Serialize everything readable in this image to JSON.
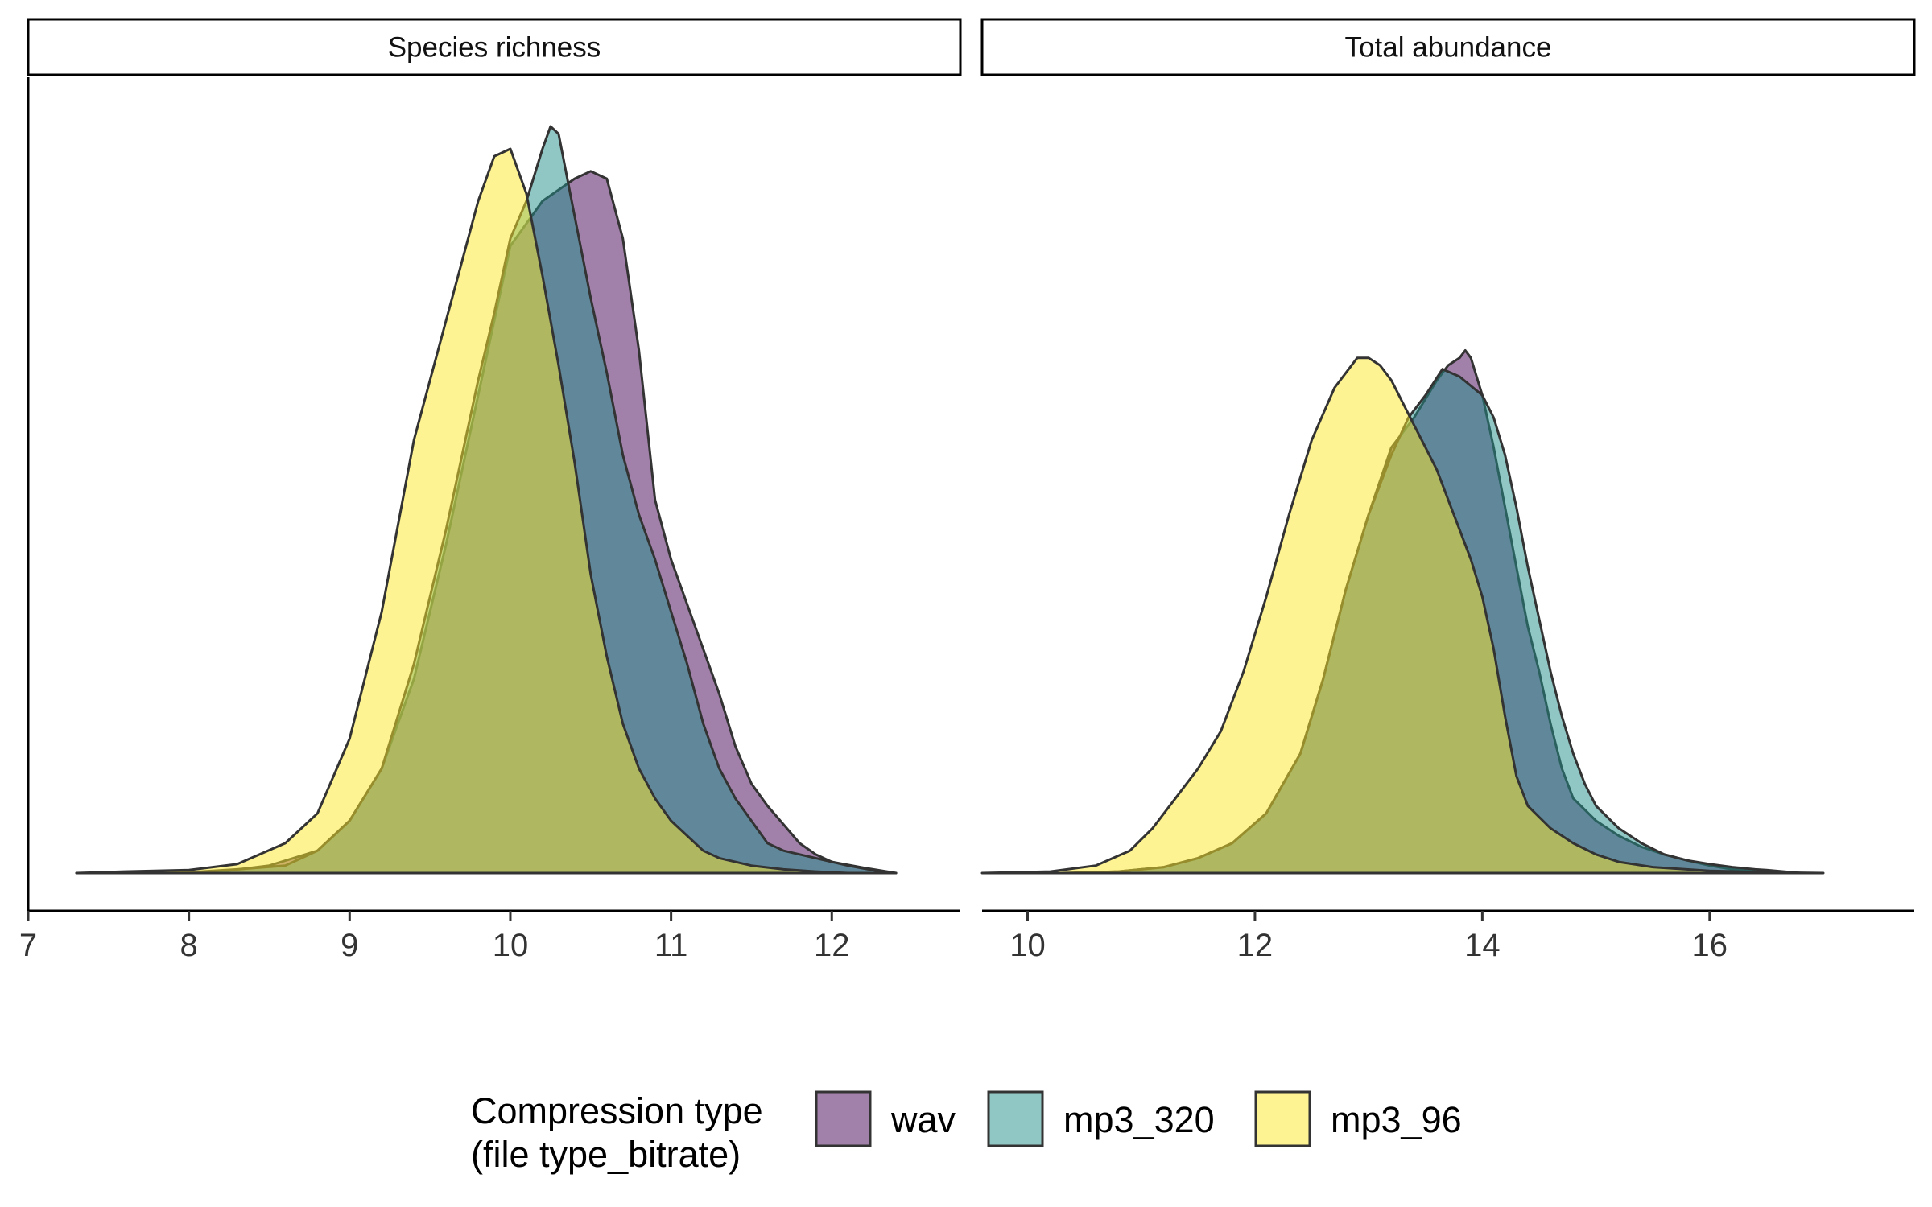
{
  "chart_data": {
    "type": "area",
    "chart_kind": "faceted density plot",
    "y_axis_visible": false,
    "grid": false,
    "legend": {
      "placement": "bottom",
      "title_lines": [
        "Compression type",
        "(file type_bitrate)"
      ],
      "entries": [
        {
          "key": "wav",
          "label": "wav",
          "color": "#440154"
        },
        {
          "key": "mp3_320",
          "label": "mp3_320",
          "color": "#21908C"
        },
        {
          "key": "mp3_96",
          "label": "mp3_96",
          "color": "#FDE725"
        }
      ]
    },
    "style": {
      "fill_alpha": 0.5,
      "outline_color": "#333333"
    },
    "panels": [
      {
        "title": "Species richness",
        "xlim": [
          7.0,
          12.8
        ],
        "ylim": [
          0,
          1.04
        ],
        "x_ticks": [
          7,
          8,
          9,
          10,
          11,
          12
        ],
        "x_tick_labels": [
          "7",
          "8",
          "9",
          "10",
          "11",
          "12"
        ],
        "series": [
          {
            "name": "wav",
            "color": "#440154",
            "points": [
              [
                7.9,
                0.0
              ],
              [
                8.2,
                0.002
              ],
              [
                8.5,
                0.01
              ],
              [
                8.8,
                0.03
              ],
              [
                9.0,
                0.07
              ],
              [
                9.2,
                0.14
              ],
              [
                9.4,
                0.26
              ],
              [
                9.6,
                0.44
              ],
              [
                9.8,
                0.64
              ],
              [
                10.0,
                0.84
              ],
              [
                10.2,
                0.9
              ],
              [
                10.4,
                0.93
              ],
              [
                10.5,
                0.94
              ],
              [
                10.6,
                0.93
              ],
              [
                10.7,
                0.85
              ],
              [
                10.8,
                0.7
              ],
              [
                10.9,
                0.5
              ],
              [
                11.0,
                0.42
              ],
              [
                11.1,
                0.36
              ],
              [
                11.2,
                0.3
              ],
              [
                11.3,
                0.24
              ],
              [
                11.4,
                0.17
              ],
              [
                11.5,
                0.12
              ],
              [
                11.6,
                0.09
              ],
              [
                11.7,
                0.065
              ],
              [
                11.8,
                0.04
              ],
              [
                11.9,
                0.025
              ],
              [
                12.0,
                0.015
              ],
              [
                12.2,
                0.007
              ],
              [
                12.4,
                0.0
              ]
            ]
          },
          {
            "name": "mp3_320",
            "color": "#21908C",
            "points": [
              [
                7.8,
                0.0
              ],
              [
                8.0,
                0.001
              ],
              [
                8.3,
                0.005
              ],
              [
                8.6,
                0.01
              ],
              [
                8.8,
                0.03
              ],
              [
                9.0,
                0.07
              ],
              [
                9.2,
                0.14
              ],
              [
                9.4,
                0.28
              ],
              [
                9.6,
                0.46
              ],
              [
                9.8,
                0.66
              ],
              [
                9.9,
                0.75
              ],
              [
                10.0,
                0.85
              ],
              [
                10.1,
                0.9
              ],
              [
                10.2,
                0.97
              ],
              [
                10.25,
                1.0
              ],
              [
                10.3,
                0.99
              ],
              [
                10.4,
                0.88
              ],
              [
                10.5,
                0.77
              ],
              [
                10.6,
                0.67
              ],
              [
                10.7,
                0.56
              ],
              [
                10.8,
                0.48
              ],
              [
                10.9,
                0.42
              ],
              [
                11.0,
                0.35
              ],
              [
                11.1,
                0.28
              ],
              [
                11.2,
                0.2
              ],
              [
                11.3,
                0.14
              ],
              [
                11.4,
                0.1
              ],
              [
                11.5,
                0.07
              ],
              [
                11.6,
                0.04
              ],
              [
                11.7,
                0.03
              ],
              [
                11.8,
                0.025
              ],
              [
                11.9,
                0.02
              ],
              [
                12.0,
                0.015
              ],
              [
                12.1,
                0.01
              ],
              [
                12.3,
                0.002
              ],
              [
                12.4,
                0.0
              ]
            ]
          },
          {
            "name": "mp3_96",
            "color": "#FDE725",
            "points": [
              [
                7.3,
                0.0
              ],
              [
                7.6,
                0.002
              ],
              [
                8.0,
                0.004
              ],
              [
                8.3,
                0.012
              ],
              [
                8.6,
                0.04
              ],
              [
                8.8,
                0.08
              ],
              [
                9.0,
                0.18
              ],
              [
                9.2,
                0.35
              ],
              [
                9.4,
                0.58
              ],
              [
                9.6,
                0.74
              ],
              [
                9.7,
                0.82
              ],
              [
                9.8,
                0.9
              ],
              [
                9.9,
                0.96
              ],
              [
                10.0,
                0.97
              ],
              [
                10.1,
                0.91
              ],
              [
                10.2,
                0.8
              ],
              [
                10.3,
                0.68
              ],
              [
                10.4,
                0.55
              ],
              [
                10.5,
                0.4
              ],
              [
                10.6,
                0.29
              ],
              [
                10.7,
                0.2
              ],
              [
                10.8,
                0.14
              ],
              [
                10.9,
                0.1
              ],
              [
                11.0,
                0.07
              ],
              [
                11.1,
                0.05
              ],
              [
                11.2,
                0.03
              ],
              [
                11.3,
                0.02
              ],
              [
                11.4,
                0.015
              ],
              [
                11.5,
                0.01
              ],
              [
                11.7,
                0.005
              ],
              [
                11.9,
                0.002
              ],
              [
                12.1,
                0.0
              ]
            ]
          }
        ]
      },
      {
        "title": "Total abundance",
        "xlim": [
          9.6,
          17.8
        ],
        "ylim": [
          0,
          1.04
        ],
        "x_ticks": [
          10,
          12,
          14,
          16
        ],
        "x_tick_labels": [
          "10",
          "12",
          "14",
          "16"
        ],
        "series": [
          {
            "name": "wav",
            "color": "#440154",
            "points": [
              [
                10.3,
                0.0
              ],
              [
                10.8,
                0.002
              ],
              [
                11.2,
                0.008
              ],
              [
                11.5,
                0.02
              ],
              [
                11.8,
                0.04
              ],
              [
                12.1,
                0.08
              ],
              [
                12.4,
                0.16
              ],
              [
                12.6,
                0.26
              ],
              [
                12.8,
                0.38
              ],
              [
                13.0,
                0.48
              ],
              [
                13.2,
                0.57
              ],
              [
                13.4,
                0.61
              ],
              [
                13.6,
                0.66
              ],
              [
                13.7,
                0.68
              ],
              [
                13.8,
                0.69
              ],
              [
                13.85,
                0.7
              ],
              [
                13.9,
                0.69
              ],
              [
                14.0,
                0.64
              ],
              [
                14.1,
                0.57
              ],
              [
                14.2,
                0.49
              ],
              [
                14.3,
                0.41
              ],
              [
                14.4,
                0.33
              ],
              [
                14.5,
                0.27
              ],
              [
                14.6,
                0.2
              ],
              [
                14.7,
                0.14
              ],
              [
                14.8,
                0.1
              ],
              [
                15.0,
                0.07
              ],
              [
                15.2,
                0.05
              ],
              [
                15.4,
                0.035
              ],
              [
                15.6,
                0.025
              ],
              [
                15.8,
                0.017
              ],
              [
                16.0,
                0.01
              ],
              [
                16.2,
                0.005
              ],
              [
                16.4,
                0.002
              ],
              [
                16.6,
                0.0
              ]
            ]
          },
          {
            "name": "mp3_320",
            "color": "#21908C",
            "points": [
              [
                10.4,
                0.0
              ],
              [
                10.8,
                0.002
              ],
              [
                11.2,
                0.008
              ],
              [
                11.5,
                0.02
              ],
              [
                11.8,
                0.04
              ],
              [
                12.1,
                0.08
              ],
              [
                12.4,
                0.16
              ],
              [
                12.6,
                0.26
              ],
              [
                12.8,
                0.38
              ],
              [
                13.0,
                0.48
              ],
              [
                13.2,
                0.56
              ],
              [
                13.35,
                0.61
              ],
              [
                13.5,
                0.64
              ],
              [
                13.65,
                0.675
              ],
              [
                13.8,
                0.665
              ],
              [
                14.0,
                0.64
              ],
              [
                14.1,
                0.61
              ],
              [
                14.2,
                0.56
              ],
              [
                14.3,
                0.49
              ],
              [
                14.4,
                0.41
              ],
              [
                14.5,
                0.34
              ],
              [
                14.6,
                0.27
              ],
              [
                14.7,
                0.21
              ],
              [
                14.8,
                0.16
              ],
              [
                14.9,
                0.12
              ],
              [
                15.0,
                0.09
              ],
              [
                15.2,
                0.06
              ],
              [
                15.4,
                0.04
              ],
              [
                15.6,
                0.025
              ],
              [
                15.8,
                0.017
              ],
              [
                16.0,
                0.012
              ],
              [
                16.2,
                0.008
              ],
              [
                16.4,
                0.005
              ],
              [
                16.5,
                0.004
              ],
              [
                16.8,
                0.0
              ]
            ]
          },
          {
            "name": "mp3_96",
            "color": "#FDE725",
            "points": [
              [
                9.6,
                0.0
              ],
              [
                10.2,
                0.002
              ],
              [
                10.6,
                0.01
              ],
              [
                10.9,
                0.03
              ],
              [
                11.1,
                0.06
              ],
              [
                11.3,
                0.1
              ],
              [
                11.5,
                0.14
              ],
              [
                11.7,
                0.19
              ],
              [
                11.9,
                0.27
              ],
              [
                12.1,
                0.37
              ],
              [
                12.3,
                0.48
              ],
              [
                12.5,
                0.58
              ],
              [
                12.7,
                0.65
              ],
              [
                12.9,
                0.69
              ],
              [
                13.0,
                0.69
              ],
              [
                13.1,
                0.68
              ],
              [
                13.2,
                0.66
              ],
              [
                13.3,
                0.63
              ],
              [
                13.4,
                0.6
              ],
              [
                13.5,
                0.57
              ],
              [
                13.6,
                0.54
              ],
              [
                13.7,
                0.5
              ],
              [
                13.8,
                0.46
              ],
              [
                13.9,
                0.42
              ],
              [
                14.0,
                0.37
              ],
              [
                14.1,
                0.3
              ],
              [
                14.2,
                0.21
              ],
              [
                14.3,
                0.13
              ],
              [
                14.4,
                0.09
              ],
              [
                14.5,
                0.075
              ],
              [
                14.6,
                0.06
              ],
              [
                14.8,
                0.04
              ],
              [
                15.0,
                0.025
              ],
              [
                15.2,
                0.015
              ],
              [
                15.5,
                0.008
              ],
              [
                16.0,
                0.003
              ],
              [
                16.5,
                0.001
              ],
              [
                17.0,
                0.0
              ]
            ]
          }
        ]
      }
    ]
  }
}
